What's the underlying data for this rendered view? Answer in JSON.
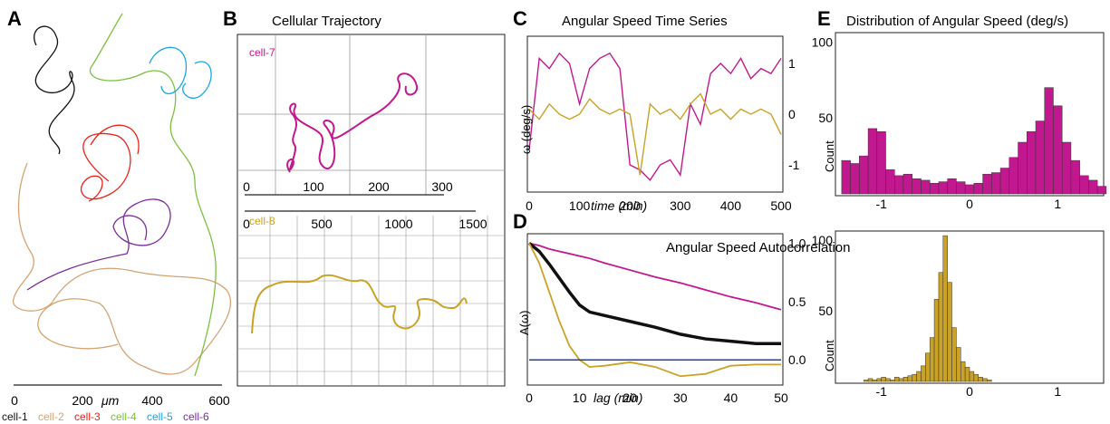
{
  "panels": {
    "a": "A",
    "b": "B",
    "c": "C",
    "d": "D",
    "e": "E"
  },
  "colors": {
    "cell1": "#111111",
    "cell2": "#d4a373",
    "cell3": "#e8241c",
    "cell4": "#7cc142",
    "cell5": "#1ba7e0",
    "cell6": "#7b2d9a",
    "cell7": "#c2188f",
    "cell8": "#c9a227",
    "zero_line": "#2040a0",
    "mean": "#111111"
  },
  "panel_a": {
    "x_ticks": [
      "0",
      "200",
      "400",
      "600"
    ],
    "unit": "μm",
    "legend": [
      "cell-1",
      "cell-2",
      "cell-3",
      "cell-4",
      "cell-5",
      "cell-6"
    ]
  },
  "panel_b": {
    "title": "Cellular Trajectory",
    "top": {
      "label": "cell-7",
      "x_ticks": [
        "0",
        "100",
        "200",
        "300"
      ]
    },
    "bottom": {
      "label": "cell-8",
      "x_ticks": [
        "0",
        "500",
        "1000",
        "1500"
      ]
    }
  },
  "chart_data": [
    {
      "type": "line",
      "title": "Angular Speed Time Series",
      "xlabel": "time (min)",
      "ylabel": "ω (deg/s)",
      "x_ticks": [
        "0",
        "100",
        "200",
        "300",
        "400",
        "500"
      ],
      "y_ticks": [
        "1",
        "0",
        "-1"
      ],
      "xlim": [
        0,
        500
      ],
      "ylim": [
        -1.5,
        1.5
      ],
      "x": [
        0,
        20,
        40,
        60,
        80,
        100,
        120,
        140,
        160,
        180,
        200,
        220,
        240,
        260,
        280,
        300,
        320,
        340,
        360,
        380,
        400,
        420,
        440,
        460,
        480,
        500
      ],
      "series": [
        {
          "color": "#c2188f",
          "values": [
            -0.7,
            1.1,
            0.9,
            1.2,
            1.0,
            0.2,
            0.9,
            1.1,
            1.2,
            0.9,
            -1.0,
            -1.1,
            -1.3,
            -1.0,
            -0.9,
            -1.2,
            0.2,
            -0.2,
            0.8,
            1.0,
            0.8,
            1.1,
            0.7,
            0.9,
            0.8,
            1.1
          ]
        },
        {
          "color": "#c9a227",
          "values": [
            0.1,
            -0.1,
            0.2,
            0.0,
            -0.1,
            0.0,
            0.3,
            0.1,
            0.0,
            0.1,
            0.0,
            -1.2,
            0.2,
            0.0,
            0.1,
            -0.1,
            0.2,
            0.4,
            0.0,
            0.1,
            -0.1,
            0.1,
            0.0,
            0.1,
            0.0,
            -0.4
          ]
        }
      ]
    },
    {
      "type": "line",
      "title": "Angular Speed Autocorrelation",
      "xlabel": "lag (min)",
      "ylabel": "A(ω)",
      "x_ticks": [
        "0",
        "10",
        "20",
        "30",
        "40",
        "50"
      ],
      "y_ticks": [
        "1.0",
        "0.5",
        "0.0"
      ],
      "xlim": [
        0,
        50
      ],
      "ylim": [
        -0.2,
        1.05
      ],
      "x": [
        0,
        2,
        4,
        6,
        8,
        10,
        12,
        15,
        20,
        25,
        30,
        35,
        40,
        45,
        50
      ],
      "series": [
        {
          "color": "#c2188f",
          "values": [
            1.0,
            0.98,
            0.95,
            0.93,
            0.91,
            0.89,
            0.87,
            0.83,
            0.77,
            0.71,
            0.66,
            0.6,
            0.54,
            0.49,
            0.43
          ]
        },
        {
          "color": "#111111",
          "values": [
            1.0,
            0.93,
            0.82,
            0.7,
            0.58,
            0.47,
            0.41,
            0.38,
            0.33,
            0.28,
            0.22,
            0.18,
            0.16,
            0.14,
            0.14
          ]
        },
        {
          "color": "#c9a227",
          "values": [
            1.0,
            0.83,
            0.58,
            0.33,
            0.12,
            0.0,
            -0.06,
            -0.05,
            -0.02,
            -0.06,
            -0.14,
            -0.12,
            -0.05,
            -0.04,
            -0.04
          ]
        },
        {
          "color": "#2040a0",
          "values": [
            0,
            0,
            0,
            0,
            0,
            0,
            0,
            0,
            0,
            0,
            0,
            0,
            0,
            0,
            0
          ]
        }
      ]
    },
    {
      "type": "bar",
      "title": "Distribution of Angular Speed (deg/s)",
      "ylabel": "Count",
      "x_ticks": [
        "-1",
        "0",
        "1"
      ],
      "y_ticks": [
        "100",
        "50"
      ],
      "xlim": [
        -1.5,
        1.5
      ],
      "ylim": [
        0,
        105
      ],
      "bin_start": -1.45,
      "bin_width": 0.1,
      "color": "#c2188f",
      "values": [
        22,
        20,
        25,
        43,
        41,
        16,
        12,
        13,
        10,
        9,
        7,
        8,
        10,
        8,
        6,
        7,
        13,
        14,
        17,
        24,
        34,
        41,
        48,
        70,
        58,
        34,
        22,
        12,
        9,
        5
      ]
    },
    {
      "type": "bar",
      "ylabel": "Count",
      "x_ticks": [
        "-1",
        "0",
        "1"
      ],
      "y_ticks": [
        "100",
        "50"
      ],
      "xlim": [
        -1.5,
        1.5
      ],
      "ylim": [
        0,
        105
      ],
      "bin_start": -1.2,
      "bin_width": 0.05,
      "color": "#c9a227",
      "values": [
        1,
        2,
        1,
        2,
        3,
        2,
        1,
        3,
        2,
        3,
        4,
        5,
        7,
        11,
        20,
        31,
        58,
        77,
        103,
        70,
        38,
        24,
        14,
        10,
        7,
        5,
        3,
        2,
        1
      ]
    }
  ]
}
